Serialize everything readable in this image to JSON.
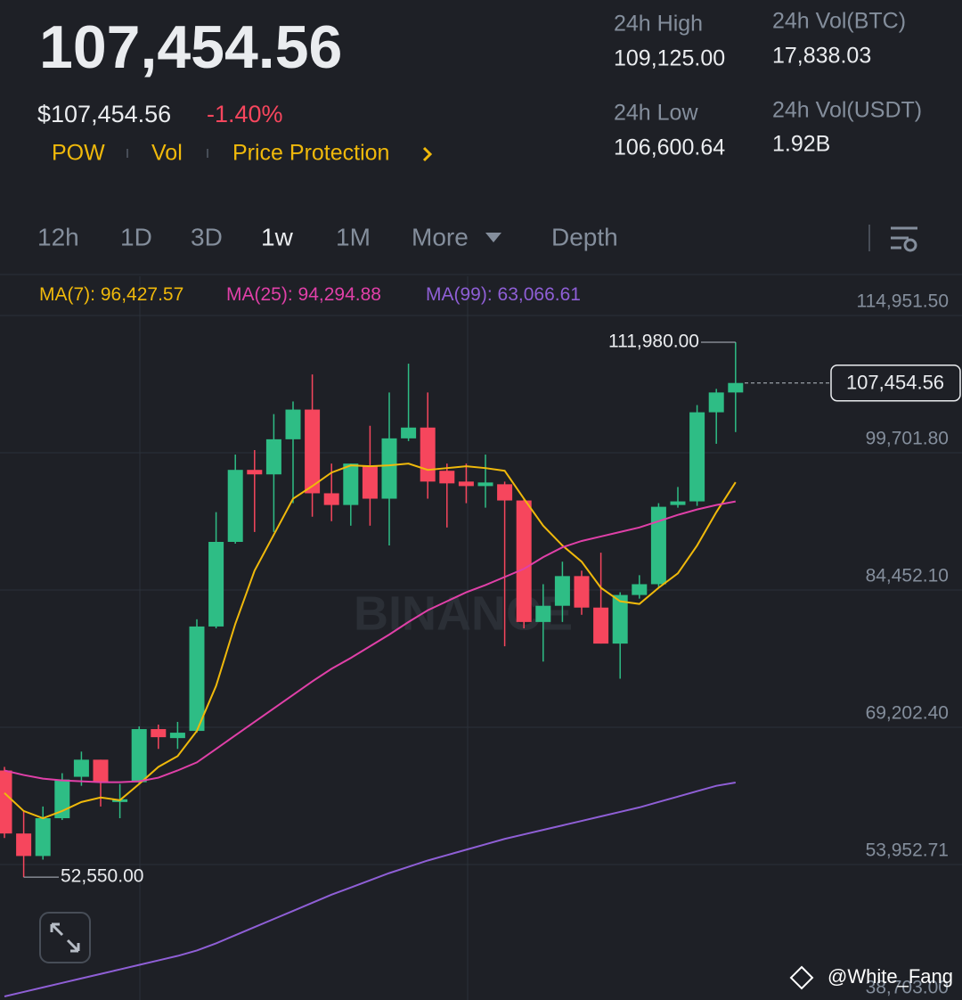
{
  "header": {
    "price": "107,454.56",
    "usd_price": "$107,454.56",
    "change": "-1.40%",
    "tags": [
      "POW",
      "Vol",
      "Price Protection"
    ],
    "stats": [
      {
        "label": "24h High",
        "value": "109,125.00"
      },
      {
        "label": "24h Vol(BTC)",
        "value": "17,838.03"
      },
      {
        "label": "24h Low",
        "value": "106,600.64"
      },
      {
        "label": "24h Vol(USDT)",
        "value": "1.92B"
      }
    ]
  },
  "tabs": {
    "items": [
      "12h",
      "1D",
      "3D",
      "1w",
      "1M",
      "More",
      "Depth"
    ],
    "active": "1w"
  },
  "chart_data": {
    "type": "candlestick",
    "open": [
      64400,
      57400,
      54900,
      59100,
      63700,
      65600,
      60900,
      63100,
      69000,
      68000,
      68800,
      80400,
      89800,
      97800,
      97300,
      101200,
      104500,
      95200,
      93900,
      98300,
      94600,
      101300,
      102500,
      97700,
      96500,
      96000,
      96200,
      94400,
      80900,
      82700,
      86000,
      82500,
      78500,
      83900,
      85100,
      93900,
      94300,
      104200,
      106400
    ],
    "high": [
      64800,
      59900,
      60400,
      64100,
      66500,
      65600,
      62900,
      69300,
      69500,
      69800,
      81200,
      93100,
      99500,
      100000,
      104000,
      105400,
      108400,
      98500,
      98500,
      102700,
      106400,
      109600,
      106400,
      98500,
      98500,
      99500,
      96500,
      94600,
      85100,
      87600,
      86600,
      88600,
      84200,
      86100,
      94100,
      95900,
      105000,
      106800,
      111980
    ],
    "low": [
      56900,
      52550,
      54500,
      58900,
      62700,
      60400,
      59100,
      62900,
      66800,
      66800,
      68600,
      80200,
      89600,
      90900,
      90900,
      94100,
      92600,
      92100,
      91600,
      91600,
      89400,
      101000,
      94600,
      91400,
      94100,
      93600,
      78200,
      80200,
      76500,
      80900,
      81700,
      78500,
      74600,
      83500,
      84800,
      93600,
      93800,
      100700,
      102000
    ],
    "close": [
      57400,
      54900,
      59100,
      63400,
      65600,
      63100,
      61200,
      69000,
      68100,
      68600,
      80400,
      89800,
      97800,
      97300,
      101200,
      104500,
      95200,
      93900,
      98500,
      94600,
      101300,
      102500,
      96500,
      96300,
      96000,
      96400,
      94400,
      80900,
      82700,
      86000,
      82500,
      78500,
      83900,
      85100,
      93700,
      94300,
      104200,
      106400,
      107454.56
    ],
    "up_color": "#2ebd85",
    "down_color": "#f6465d",
    "series": [
      {
        "name": "MA(7)",
        "color": "#f0b90b",
        "last_label": "96,427.57",
        "values": [
          61900,
          59900,
          59100,
          59900,
          60900,
          61400,
          61100,
          62900,
          64800,
          66000,
          68800,
          73800,
          80700,
          86600,
          90600,
          94600,
          96000,
          97500,
          98300,
          98200,
          98300,
          98500,
          97800,
          98000,
          98200,
          98000,
          97700,
          94600,
          91600,
          89400,
          87600,
          84700,
          83200,
          82900,
          84700,
          86300,
          89400,
          93100,
          96427.57
        ]
      },
      {
        "name": "MA(25)",
        "color": "#e040a8",
        "last_label": "94,294.88",
        "values": [
          64400,
          63900,
          63500,
          63300,
          63200,
          63100,
          63100,
          63200,
          63600,
          64400,
          65300,
          66800,
          68300,
          69800,
          71300,
          72800,
          74300,
          75700,
          76900,
          78200,
          79500,
          80900,
          82200,
          83200,
          84200,
          85000,
          85900,
          86800,
          88100,
          89200,
          89900,
          90400,
          90900,
          91400,
          92100,
          92800,
          93400,
          93900,
          94294.88
        ]
      },
      {
        "name": "MA(99)",
        "color": "#8f5fd6",
        "last_label": "63,066.61",
        "values": [
          39300,
          39800,
          40300,
          40800,
          41300,
          41800,
          42300,
          42800,
          43300,
          43800,
          44400,
          45200,
          46100,
          47000,
          47900,
          48800,
          49700,
          50600,
          51400,
          52200,
          53000,
          53700,
          54400,
          55000,
          55600,
          56200,
          56800,
          57300,
          57800,
          58300,
          58800,
          59300,
          59800,
          60300,
          60900,
          61500,
          62100,
          62700,
          63066.61
        ]
      }
    ],
    "ylim": [
      38703,
      114951.5
    ],
    "yticks": [
      {
        "value": 114951.5,
        "label": "114,951.50"
      },
      {
        "value": 99701.8,
        "label": "99,701.80"
      },
      {
        "value": 84452.1,
        "label": "84,452.10"
      },
      {
        "value": 69202.4,
        "label": "69,202.40"
      },
      {
        "value": 53952.71,
        "label": "53,952.71"
      },
      {
        "value": 38703,
        "label": "38,703.00"
      }
    ],
    "grid": true,
    "annotations": [
      {
        "value": 111980,
        "label": "111,980.00",
        "kind": "high"
      },
      {
        "value": 52550,
        "label": "52,550.00",
        "kind": "low"
      }
    ],
    "last_price": {
      "value": 107454.56,
      "label": "107,454.56"
    }
  },
  "watermark": "BINANCE",
  "credit": "@White_Fang"
}
